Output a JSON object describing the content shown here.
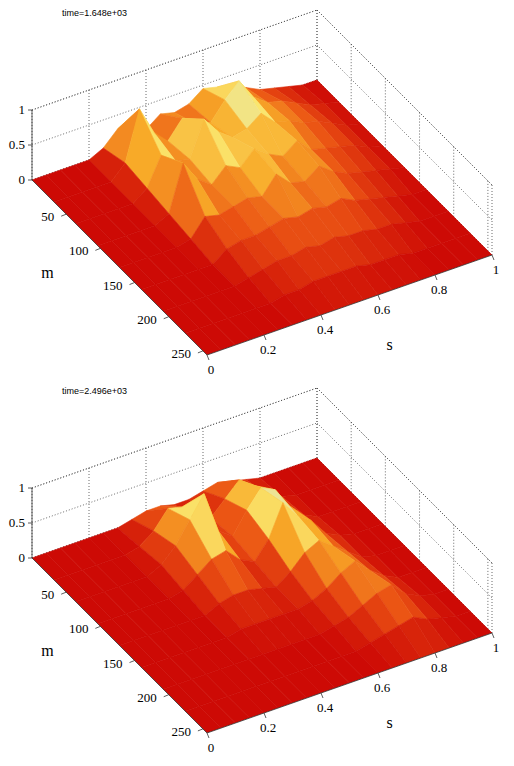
{
  "chart_data": [
    {
      "type": "surface",
      "title": "time=1.648e+03",
      "xlabel": "s",
      "ylabel": "m",
      "grid": true,
      "x": [
        0,
        0.05,
        0.1,
        0.15,
        0.2,
        0.25,
        0.3,
        0.35,
        0.4,
        0.45,
        0.5,
        0.55,
        0.6,
        0.65,
        0.7,
        0.75,
        0.8,
        0.85,
        0.9,
        0.95,
        1
      ],
      "y": [
        0,
        32,
        64,
        96,
        128,
        160,
        192,
        224,
        256
      ],
      "xlim": [
        0,
        1
      ],
      "ylim": [
        0,
        256
      ],
      "zlim": [
        0,
        1
      ],
      "xticks": [
        0,
        0.2,
        0.4,
        0.6,
        0.8,
        1
      ],
      "yticks": [
        50,
        100,
        150,
        200,
        250
      ],
      "zticks": [
        0,
        0.5,
        1
      ],
      "z": [
        [
          0,
          0,
          0,
          0,
          0,
          0.1,
          0.3,
          0.2,
          0.15,
          0.3,
          0.25,
          0.3,
          0.45,
          0.4,
          0.3,
          0.25,
          0.15,
          0.1,
          0.05,
          0,
          0
        ],
        [
          0,
          0,
          0,
          0,
          0,
          0.2,
          0.9,
          0.5,
          0.3,
          0.55,
          0.4,
          0.35,
          0.6,
          0.8,
          0.5,
          0.35,
          0.3,
          0.2,
          0.1,
          0.05,
          0
        ],
        [
          0,
          0,
          0,
          0,
          0,
          0.15,
          0.55,
          0.4,
          0.35,
          0.85,
          0.6,
          0.45,
          0.5,
          0.65,
          0.45,
          0.4,
          0.3,
          0.25,
          0.15,
          0.05,
          0
        ],
        [
          0,
          0,
          0,
          0,
          0,
          0.1,
          0.75,
          0.45,
          0.3,
          0.5,
          0.4,
          0.6,
          0.45,
          0.35,
          0.5,
          0.3,
          0.25,
          0.2,
          0.15,
          0.05,
          0
        ],
        [
          0,
          0,
          0,
          0,
          0,
          0.05,
          0.3,
          0.25,
          0.3,
          0.35,
          0.3,
          0.55,
          0.35,
          0.3,
          0.45,
          0.3,
          0.2,
          0.15,
          0.1,
          0.05,
          0
        ],
        [
          0,
          0,
          0,
          0,
          0,
          0,
          0.15,
          0.2,
          0.2,
          0.25,
          0.3,
          0.25,
          0.3,
          0.25,
          0.3,
          0.2,
          0.15,
          0.1,
          0.05,
          0,
          0
        ],
        [
          0,
          0,
          0,
          0,
          0,
          0,
          0.05,
          0.1,
          0.15,
          0.15,
          0.2,
          0.15,
          0.2,
          0.15,
          0.15,
          0.1,
          0.1,
          0.05,
          0,
          0,
          0
        ],
        [
          0,
          0,
          0,
          0,
          0,
          0,
          0,
          0.05,
          0.05,
          0.1,
          0.1,
          0.1,
          0.1,
          0.05,
          0.05,
          0.05,
          0,
          0,
          0,
          0,
          0
        ],
        [
          0,
          0,
          0,
          0,
          0,
          0,
          0,
          0,
          0,
          0,
          0,
          0,
          0,
          0,
          0,
          0,
          0,
          0,
          0,
          0,
          0
        ]
      ]
    },
    {
      "type": "surface",
      "title": "time=2.496e+03",
      "xlabel": "s",
      "ylabel": "m",
      "grid": true,
      "x": [
        0,
        0.05,
        0.1,
        0.15,
        0.2,
        0.25,
        0.3,
        0.35,
        0.4,
        0.45,
        0.5,
        0.55,
        0.6,
        0.65,
        0.7,
        0.75,
        0.8,
        0.85,
        0.9,
        0.95,
        1
      ],
      "y": [
        0,
        32,
        64,
        96,
        128,
        160,
        192,
        224,
        256
      ],
      "xlim": [
        0,
        1
      ],
      "ylim": [
        0,
        256
      ],
      "zlim": [
        0,
        1
      ],
      "xticks": [
        0,
        0.2,
        0.4,
        0.6,
        0.8,
        1
      ],
      "yticks": [
        50,
        100,
        150,
        200,
        250
      ],
      "zticks": [
        0,
        0.5,
        1
      ],
      "z": [
        [
          0,
          0,
          0,
          0,
          0,
          0,
          0,
          0.05,
          0.1,
          0.1,
          0.05,
          0.05,
          0.1,
          0.15,
          0.1,
          0.05,
          0,
          0,
          0,
          0,
          0
        ],
        [
          0,
          0,
          0,
          0,
          0,
          0,
          0.05,
          0.2,
          0.45,
          0.4,
          0.15,
          0.1,
          0.3,
          0.5,
          0.35,
          0.15,
          0.05,
          0,
          0,
          0,
          0
        ],
        [
          0,
          0,
          0,
          0,
          0,
          0,
          0.1,
          0.3,
          0.6,
          0.9,
          0.3,
          0.15,
          0.45,
          0.7,
          0.6,
          0.3,
          0.1,
          0,
          0,
          0,
          0
        ],
        [
          0,
          0,
          0,
          0,
          0,
          0,
          0.05,
          0.2,
          0.35,
          0.4,
          0.2,
          0.1,
          0.35,
          0.8,
          0.55,
          0.4,
          0.15,
          0.05,
          0,
          0,
          0
        ],
        [
          0,
          0,
          0,
          0,
          0,
          0,
          0,
          0.1,
          0.15,
          0.15,
          0.1,
          0.05,
          0.2,
          0.4,
          0.5,
          0.35,
          0.2,
          0.05,
          0,
          0,
          0
        ],
        [
          0,
          0,
          0,
          0,
          0,
          0,
          0,
          0.05,
          0.05,
          0.05,
          0.05,
          0.05,
          0.1,
          0.2,
          0.35,
          0.45,
          0.25,
          0.1,
          0,
          0,
          0
        ],
        [
          0,
          0,
          0,
          0,
          0,
          0,
          0,
          0,
          0,
          0,
          0,
          0,
          0.05,
          0.1,
          0.2,
          0.3,
          0.35,
          0.15,
          0.05,
          0,
          0
        ],
        [
          0,
          0,
          0,
          0,
          0,
          0,
          0,
          0,
          0,
          0,
          0,
          0,
          0,
          0.05,
          0.1,
          0.15,
          0.2,
          0.1,
          0.05,
          0,
          0
        ],
        [
          0,
          0,
          0,
          0,
          0,
          0,
          0,
          0,
          0,
          0,
          0,
          0,
          0,
          0,
          0,
          0,
          0,
          0,
          0,
          0,
          0
        ]
      ]
    }
  ]
}
